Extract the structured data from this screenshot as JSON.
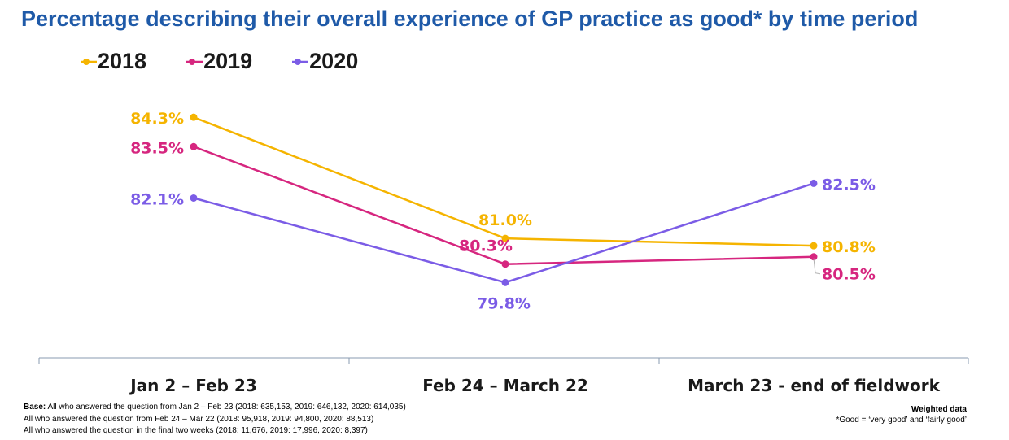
{
  "chart_data": {
    "type": "line",
    "title": "Percentage describing their overall experience of GP practice as good* by time period",
    "categories": [
      "Jan 2 – Feb 23",
      "Feb 24 – March 22",
      "March 23 - end of fieldwork"
    ],
    "series": [
      {
        "name": "2018",
        "color": "#f5b400",
        "values": [
          84.3,
          81.0,
          80.8
        ],
        "labels": [
          "84.3%",
          "81.0%",
          "80.8%"
        ]
      },
      {
        "name": "2019",
        "color": "#d6267f",
        "values": [
          83.5,
          80.3,
          80.5
        ],
        "labels": [
          "83.5%",
          "80.3%",
          "80.5%"
        ]
      },
      {
        "name": "2020",
        "color": "#7b5ce6",
        "values": [
          82.1,
          79.8,
          82.5
        ],
        "labels": [
          "82.1%",
          "79.8%",
          "82.5%"
        ]
      }
    ],
    "ylim": [
      78.5,
      85.5
    ],
    "xlabel": "",
    "ylabel": "",
    "grid": false,
    "legend_position": "top-left"
  },
  "footer": {
    "base_label": "Base:",
    "base_line1": " All who answered the question from Jan 2 – Feb 23 (2018: 635,153, 2019: 646,132, 2020: 614,035)",
    "base_line2": "All who answered the question from Feb 24 – Mar 22 (2018: 95,918, 2019: 94,800, 2020: 88,513)",
    "base_line3": "All who answered the question in the final two weeks (2018: 11,676, 2019: 17,996, 2020: 8,397)",
    "weighted": "Weighted data",
    "good_note": "*Good = ‘very good’ and ‘fairly good’"
  }
}
